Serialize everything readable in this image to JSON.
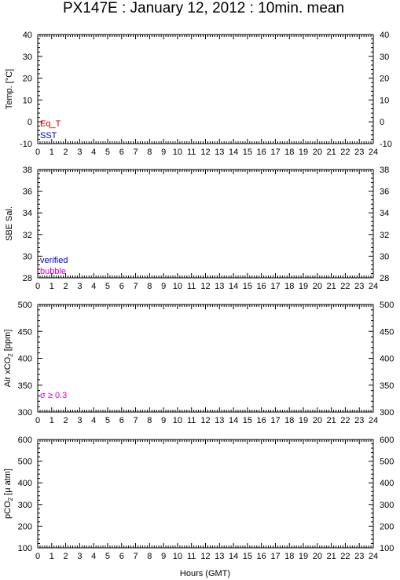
{
  "title": "PX147E : January 12, 2012 : 10min. mean",
  "xlabel": "Hours (GMT)",
  "colors": {
    "eq_t": "#cc0000",
    "sst": "#0000cc",
    "verified": "#0000cc",
    "bubble": "#cc00cc",
    "sigma": "#cc00cc"
  },
  "chart_data": [
    {
      "type": "line",
      "ylabel": "Temp. [°C]",
      "xlim": [
        0,
        24
      ],
      "ylim": [
        -10,
        40
      ],
      "xticks": [
        "0",
        "1",
        "2",
        "3",
        "4",
        "5",
        "6",
        "7",
        "8",
        "9",
        "10",
        "11",
        "12",
        "13",
        "14",
        "15",
        "16",
        "17",
        "18",
        "19",
        "20",
        "21",
        "22",
        "23",
        "24"
      ],
      "yticks": [
        "40",
        "30",
        "20",
        "10",
        "0",
        "-10"
      ],
      "series": [
        {
          "name": "Eq_T",
          "values": []
        },
        {
          "name": "SST",
          "values": []
        }
      ],
      "grid": false,
      "legend_position": "bottom-left"
    },
    {
      "type": "line",
      "ylabel": "SBE Sal.",
      "xlim": [
        0,
        24
      ],
      "ylim": [
        28,
        38
      ],
      "xticks": [
        "0",
        "1",
        "2",
        "3",
        "4",
        "5",
        "6",
        "7",
        "8",
        "9",
        "10",
        "11",
        "12",
        "13",
        "14",
        "15",
        "16",
        "17",
        "18",
        "19",
        "20",
        "21",
        "22",
        "23",
        "24"
      ],
      "yticks": [
        "38",
        "36",
        "34",
        "32",
        "30",
        "28"
      ],
      "series": [
        {
          "name": "verified",
          "values": []
        },
        {
          "name": "bubble",
          "values": []
        }
      ],
      "grid": false,
      "legend_position": "bottom-left"
    },
    {
      "type": "scatter",
      "ylabel_main": "Air xCO",
      "ylabel_sub": "2",
      "ylabel_tail": " [ppm]",
      "xlim": [
        0,
        24
      ],
      "ylim": [
        300,
        500
      ],
      "xticks": [
        "0",
        "1",
        "2",
        "3",
        "4",
        "5",
        "6",
        "7",
        "8",
        "9",
        "10",
        "11",
        "12",
        "13",
        "14",
        "15",
        "16",
        "17",
        "18",
        "19",
        "20",
        "21",
        "22",
        "23",
        "24"
      ],
      "yticks": [
        "500",
        "450",
        "400",
        "350",
        "300"
      ],
      "series": [
        {
          "name": "σ ≥ 0.3",
          "values": []
        }
      ],
      "grid": false,
      "legend_position": "bottom-left"
    },
    {
      "type": "scatter",
      "ylabel_main": "pCO",
      "ylabel_sub": "2",
      "ylabel_tail": " [μ atm]",
      "xlim": [
        0,
        24
      ],
      "ylim": [
        100,
        600
      ],
      "xticks": [
        "0",
        "1",
        "2",
        "3",
        "4",
        "5",
        "6",
        "7",
        "8",
        "9",
        "10",
        "11",
        "12",
        "13",
        "14",
        "15",
        "16",
        "17",
        "18",
        "19",
        "20",
        "21",
        "22",
        "23",
        "24"
      ],
      "yticks": [
        "600",
        "500",
        "400",
        "300",
        "200",
        "100"
      ],
      "series": [],
      "grid": false
    }
  ]
}
